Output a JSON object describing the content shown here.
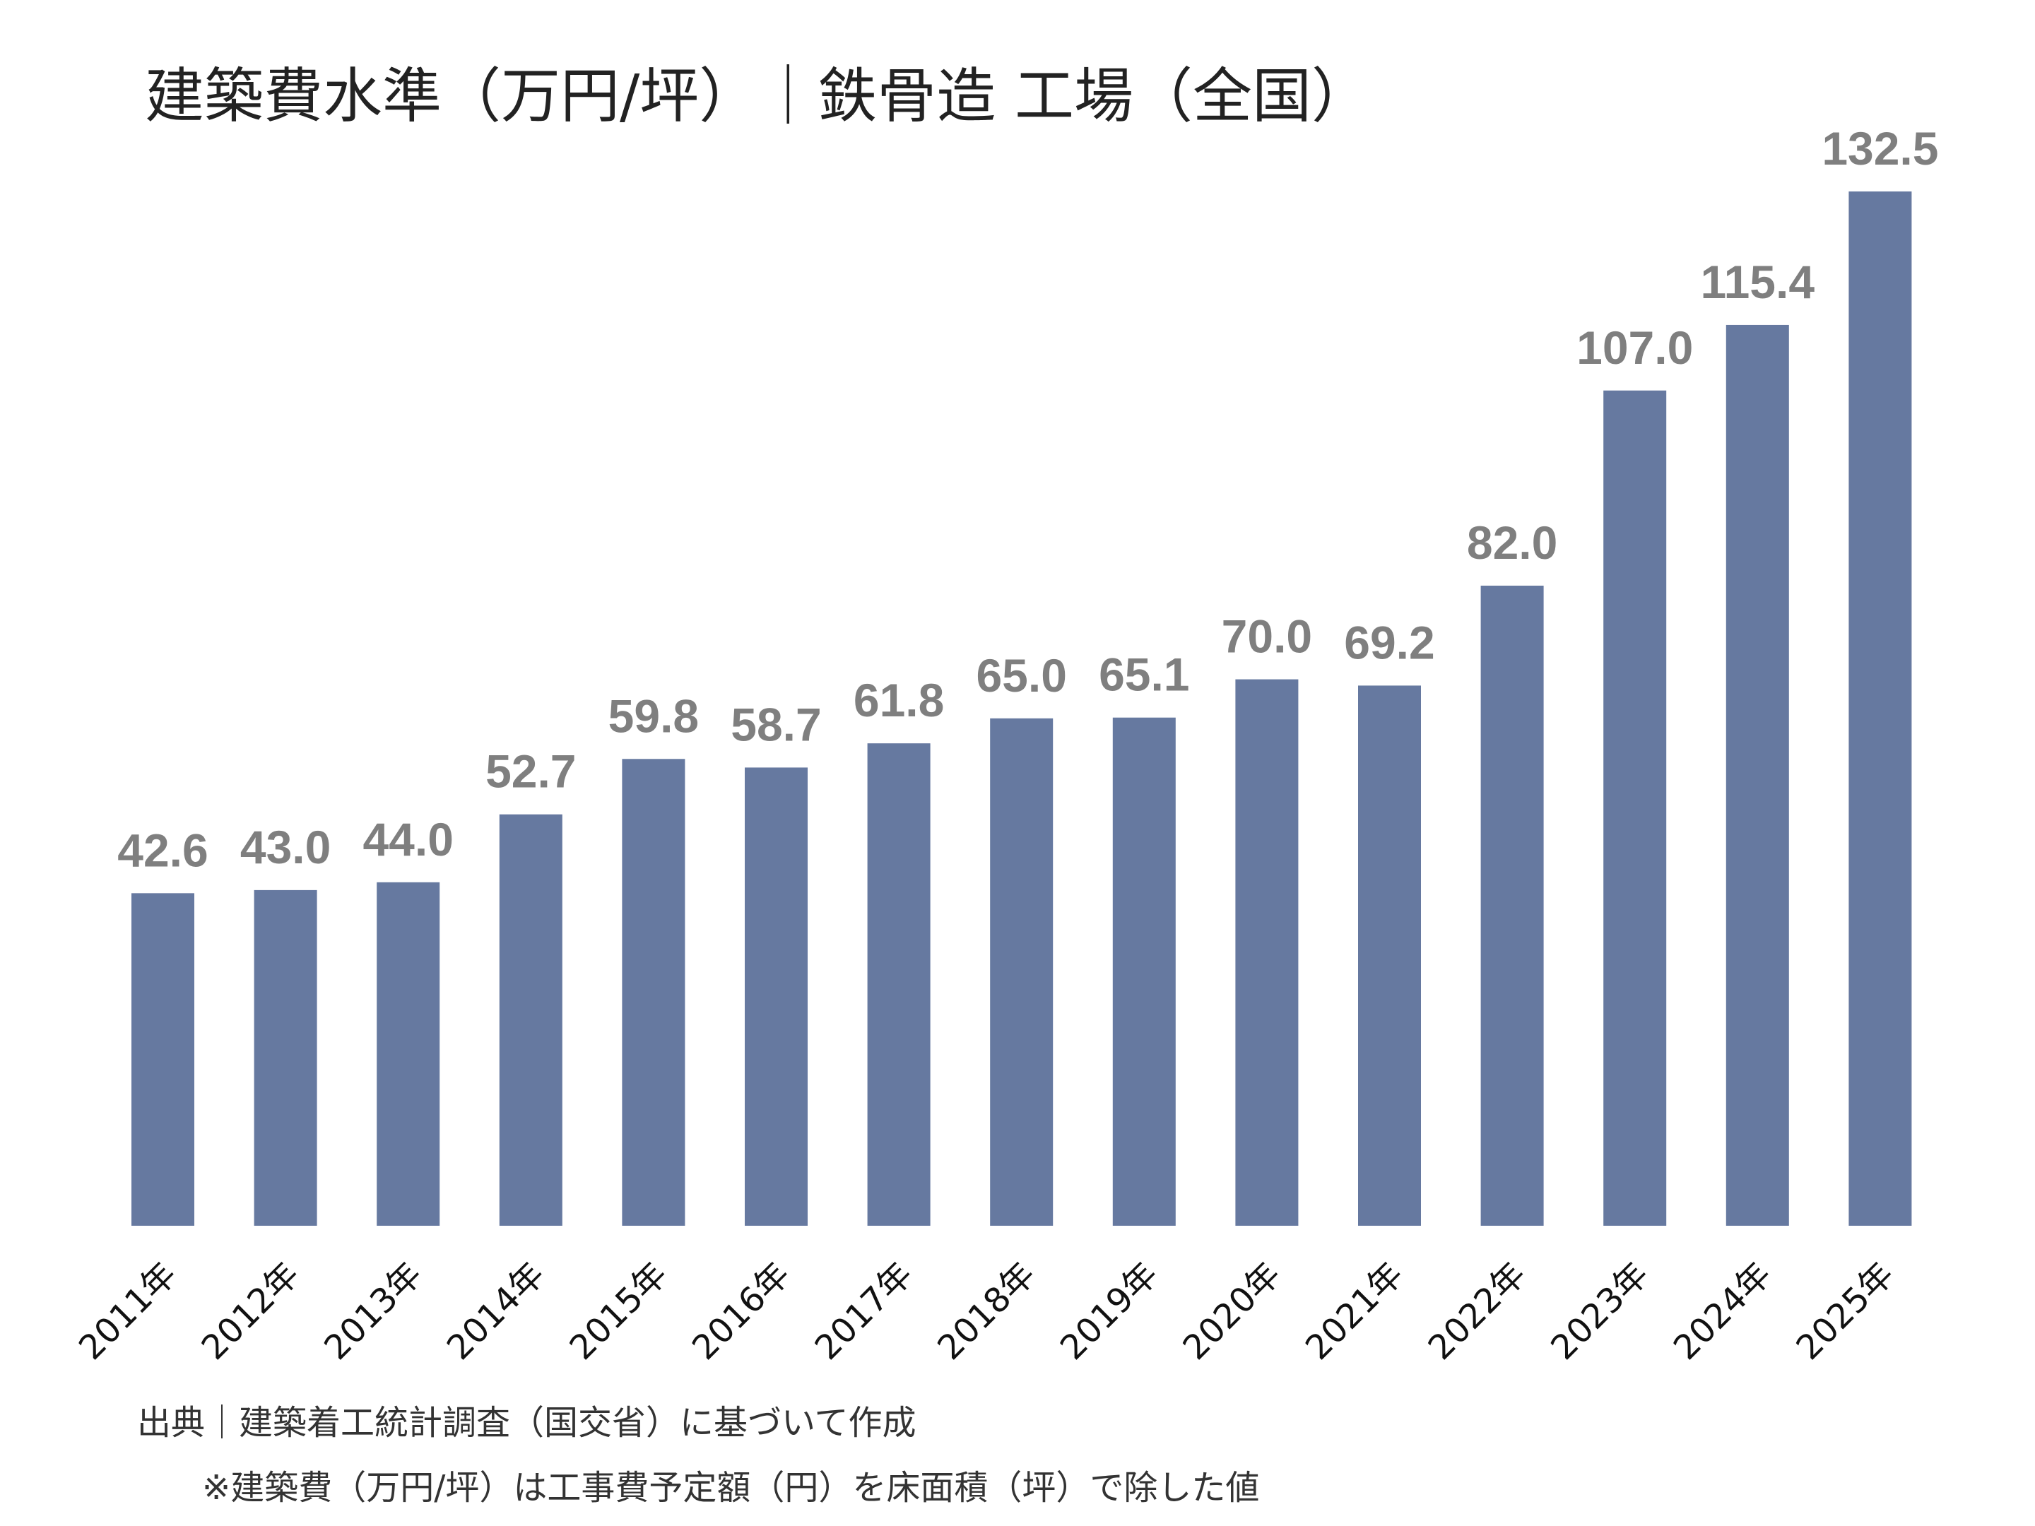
{
  "chart_data": {
    "type": "bar",
    "title": "建築費水準（万円/坪）｜鉄骨造 工場（全国）",
    "categories": [
      "2011年",
      "2012年",
      "2013年",
      "2014年",
      "2015年",
      "2016年",
      "2017年",
      "2018年",
      "2019年",
      "2020年",
      "2021年",
      "2022年",
      "2023年",
      "2024年",
      "2025年"
    ],
    "values": [
      42.6,
      43.0,
      44.0,
      52.7,
      59.8,
      58.7,
      61.8,
      65.0,
      65.1,
      70.0,
      69.2,
      82.0,
      107.0,
      115.4,
      132.5
    ],
    "labels": [
      "42.6",
      "43.0",
      "44.0",
      "52.7",
      "59.8",
      "58.7",
      "61.8",
      "65.0",
      "65.1",
      "70.0",
      "69.2",
      "82.0",
      "107.0",
      "115.4",
      "132.5"
    ],
    "xlabel": "",
    "ylabel": "",
    "ylim": [
      0,
      132.5
    ],
    "grid": false,
    "bar_color": "#6679a0",
    "label_color": "#7f7f7f"
  },
  "notes": {
    "source": "出典｜建築着工統計調査（国交省）に基づいて作成",
    "definition": "※建築費（万円/坪）は工事費予定額（円）を床面積（坪）で除した値"
  }
}
